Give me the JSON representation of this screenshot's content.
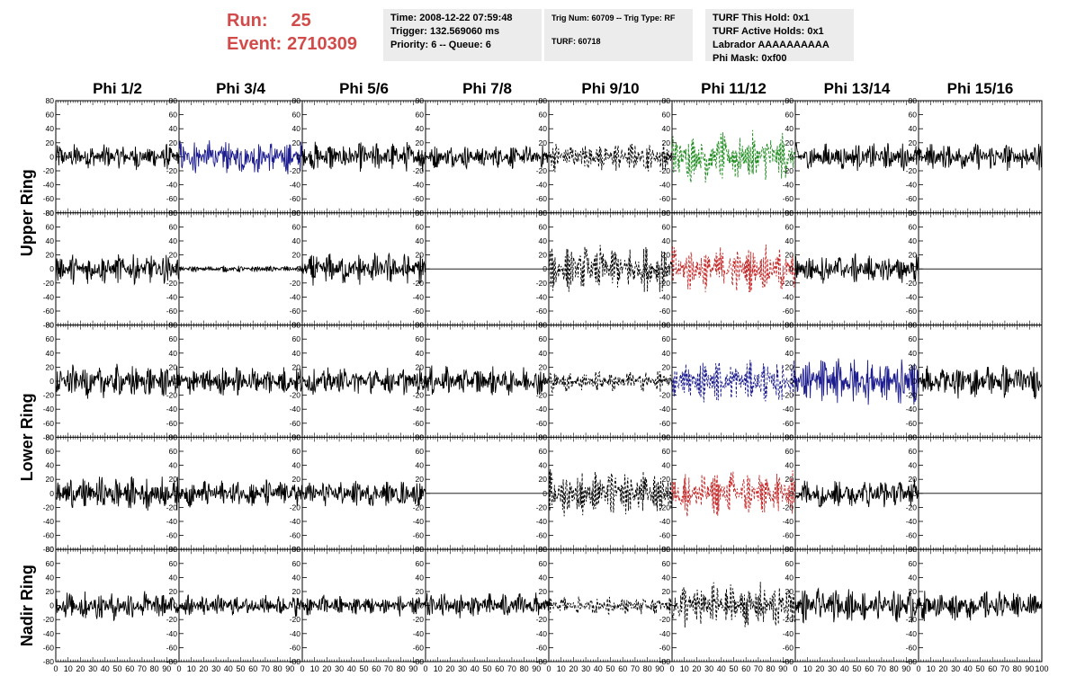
{
  "header": {
    "run_label": "Run:",
    "run_value": "25",
    "event_label": "Event:",
    "event_value": "2710309",
    "time": "Time: 2008-12-22 07:59:48",
    "trigger": "Trigger: 132.569060 ms",
    "priority": "Priority: 6 -- Queue: 6",
    "trig_num": "Trig Num: 60709 -- Trig Type: RF",
    "turf": "TURF: 60718",
    "turf_this_hold": "TURF This Hold: 0x1",
    "turf_active_holds": "TURF Active Holds: 0x1",
    "labrador": "Labrador AAAAAAAAAA",
    "phi_mask": "Phi Mask: 0xf00"
  },
  "chart_data": {
    "type": "line",
    "columns": [
      "Phi 1/2",
      "Phi 3/4",
      "Phi 5/6",
      "Phi 7/8",
      "Phi 9/10",
      "Phi 11/12",
      "Phi 13/14",
      "Phi 15/16"
    ],
    "row_groups": [
      {
        "label": "Upper Ring",
        "rows": [
          0,
          1
        ]
      },
      {
        "label": "Lower Ring",
        "rows": [
          2,
          3
        ]
      },
      {
        "label": "Nadir Ring",
        "rows": [
          4
        ]
      }
    ],
    "xlim": [
      0,
      100
    ],
    "ylim": [
      -80,
      80
    ],
    "x_ticks": [
      "0",
      "10",
      "20",
      "30",
      "40",
      "50",
      "60",
      "70",
      "80",
      "90",
      "100"
    ],
    "y_ticks": [
      "80",
      "60",
      "40",
      "20",
      "0",
      "-20",
      "-40",
      "-60",
      "-80"
    ],
    "colors": {
      "black": "#000000",
      "blue": "#1c1c8f",
      "green": "#1f8c1f",
      "red": "#c42a2a"
    },
    "panels": [
      [
        {
          "color": "black",
          "dashed": false,
          "amp": 12
        },
        {
          "color": "blue",
          "dashed": false,
          "amp": 16
        },
        {
          "color": "black",
          "dashed": false,
          "amp": 14
        },
        {
          "color": "black",
          "dashed": false,
          "amp": 11
        },
        {
          "color": "black",
          "dashed": true,
          "amp": 14
        },
        {
          "color": "green",
          "dashed": true,
          "amp": 24
        },
        {
          "color": "black",
          "dashed": false,
          "amp": 13
        },
        {
          "color": "black",
          "dashed": false,
          "amp": 13
        }
      ],
      [
        {
          "color": "black",
          "dashed": false,
          "amp": 14
        },
        {
          "color": "black",
          "dashed": false,
          "amp": 3
        },
        {
          "color": "black",
          "dashed": false,
          "amp": 15
        },
        {
          "color": "black",
          "dashed": false,
          "amp": 0
        },
        {
          "color": "black",
          "dashed": true,
          "amp": 22
        },
        {
          "color": "red",
          "dashed": true,
          "amp": 22
        },
        {
          "color": "black",
          "dashed": false,
          "amp": 14
        },
        {
          "color": "black",
          "dashed": false,
          "amp": 0
        }
      ],
      [
        {
          "color": "black",
          "dashed": false,
          "amp": 16
        },
        {
          "color": "black",
          "dashed": false,
          "amp": 14
        },
        {
          "color": "black",
          "dashed": false,
          "amp": 13
        },
        {
          "color": "black",
          "dashed": false,
          "amp": 14
        },
        {
          "color": "black",
          "dashed": true,
          "amp": 10
        },
        {
          "color": "blue",
          "dashed": true,
          "amp": 20
        },
        {
          "color": "blue",
          "dashed": false,
          "amp": 22
        },
        {
          "color": "black",
          "dashed": false,
          "amp": 16
        }
      ],
      [
        {
          "color": "black",
          "dashed": false,
          "amp": 16
        },
        {
          "color": "black",
          "dashed": false,
          "amp": 13
        },
        {
          "color": "black",
          "dashed": false,
          "amp": 12
        },
        {
          "color": "black",
          "dashed": false,
          "amp": 0
        },
        {
          "color": "black",
          "dashed": true,
          "amp": 22
        },
        {
          "color": "red",
          "dashed": true,
          "amp": 22
        },
        {
          "color": "black",
          "dashed": false,
          "amp": 14
        },
        {
          "color": "black",
          "dashed": false,
          "amp": 0
        }
      ],
      [
        {
          "color": "black",
          "dashed": false,
          "amp": 14
        },
        {
          "color": "black",
          "dashed": false,
          "amp": 10
        },
        {
          "color": "black",
          "dashed": false,
          "amp": 10
        },
        {
          "color": "black",
          "dashed": false,
          "amp": 12
        },
        {
          "color": "black",
          "dashed": true,
          "amp": 8
        },
        {
          "color": "black",
          "dashed": true,
          "amp": 22
        },
        {
          "color": "black",
          "dashed": false,
          "amp": 16
        },
        {
          "color": "black",
          "dashed": false,
          "amp": 14
        }
      ]
    ]
  }
}
